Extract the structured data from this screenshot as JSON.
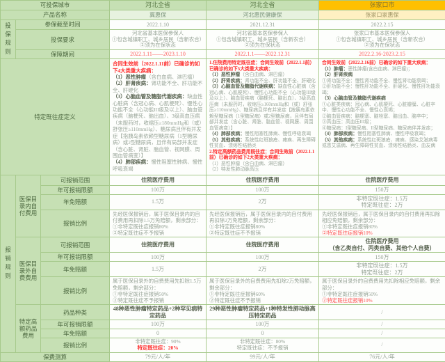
{
  "colors": {
    "header_green": "#c6e0b4",
    "header_yellow": "#ffc000",
    "accent_red": "#fe2b2b",
    "pink_red": "#ff5252"
  },
  "labels": {
    "region": "可投保城市",
    "product": "产品名称",
    "section_enroll": "投保规则",
    "deadline": "参保截至时间",
    "require": "投保要求",
    "period": "保障期间",
    "preexisting": "特定既往症定义",
    "section_report": "报销规则",
    "group_inlist": "医保目录内自付费用",
    "group_outlist": "医保目录外自费费用",
    "group_drugs": "特定高额药品费用",
    "scope": "可报销范围",
    "limit": "年可报销限额",
    "deductible": "年免赔额",
    "ratio": "报销比例",
    "drug_types": "药品种类",
    "premium": "保费测算"
  },
  "products": [
    {
      "region": "河北全省",
      "name": "冀惠保",
      "deadline": "2022.1.10",
      "requirements": [
        [
          {
            "t": "河北省基本医保参保人"
          }
        ],
        [
          {
            "t": "①包含城镇职工、城乡居民（含新农合）"
          }
        ],
        [
          {
            "t": "②须为在保状态"
          }
        ]
      ],
      "period": "2022.1.11——2023.1.10",
      "preexisting": [
        [
          {
            "t": "合同生效前（2022.1.11前）已确诊的如下4大类重大疾病：",
            "s": "r"
          }
        ],
        [
          {
            "t": "（1）恶性肿瘤",
            "s": "b"
          },
          {
            "t": "（含白血病、淋巴瘤）"
          }
        ],
        [
          {
            "t": "（2）肝肾疾病：",
            "s": "b"
          },
          {
            "t": "肾功能不全、肝功能不全、肝硬化"
          }
        ],
        [
          {
            "t": "（3）心脑血管及糖脂代谢疾病：",
            "s": "b"
          },
          {
            "t": "缺血性心脏病（含冠心病、心肌梗死）、慢性心功能不全（心功能III级及以上）、脑血管疾病（脑梗死、脑出血）、3级高血压病（未服药时，收缩压≥180mmHg和（或）舒张压≥110mmHg）、糖尿病且伴有并发症【指胰岛素依赖型糖尿病（1型糖尿病）或2型糖尿病，且伴有局部并发症（含心脏、肾脏、脑血管、视网膜、周围血管病变）】"
          }
        ],
        [
          {
            "t": "（4）肺部疾病：",
            "s": "b"
          },
          {
            "t": "慢性阻塞性肺病、慢性呼吸衰竭"
          }
        ]
      ],
      "inlist": {
        "scope": "住院医疗费用",
        "limit": "100万",
        "deductible": [
          [
            {
              "t": "1.5万"
            }
          ]
        ],
        "ratio": [
          [
            {
              "t": "先经医保报销后，属于医保目录内的自付费用再扣除1.5万免赔额，剩余部分："
            }
          ],
          [
            {
              "t": "①非特定既往症报销80%"
            }
          ],
          [
            {
              "t": "②特定既往症不予报销"
            }
          ]
        ]
      },
      "outlist": {
        "scope": [
          [
            {
              "t": "住院医疗费用"
            }
          ]
        ],
        "limit": "100万",
        "deductible": [
          [
            {
              "t": "1.5万"
            }
          ]
        ],
        "ratio": [
          [
            {
              "t": "属于医保目录外的自费费用先扣除1.5万免赔额，剩余部分："
            }
          ],
          [
            {
              "t": "①非特定既往症报销50%"
            }
          ],
          [
            {
              "t": "②特定既往症不予报销"
            }
          ]
        ]
      },
      "drugs": {
        "types": "48种恶性肿瘤特定药品+2种罕见病特定药品",
        "limit": "100万",
        "deductible": "0",
        "ratio": [
          [
            {
              "t": "非特定既往症：90%"
            }
          ],
          [
            {
              "t": "特定既往症：20%",
              "s": "r"
            }
          ]
        ]
      },
      "premium": "79元/人/年"
    },
    {
      "region": "河北全省",
      "name": "河北惠民健康保",
      "deadline": "2021.12.31",
      "requirements": [
        [
          {
            "t": "河北省基本医保参保人"
          }
        ],
        [
          {
            "t": "①包含城镇职工、城乡居民（含新农合）"
          }
        ],
        [
          {
            "t": "②须为在保状态"
          }
        ]
      ],
      "period": "2022.1.1——2022.12.31",
      "preexisting": [
        [
          {
            "t": "1.住院费用特定既往症：合同生效前（2022.1.1前）已确诊的如下5大类重大疾病：",
            "s": "r"
          }
        ],
        [
          {
            "t": "（1）恶性肿瘤",
            "s": "b"
          },
          {
            "t": "（含白血病、淋巴瘤）"
          }
        ],
        [
          {
            "t": "（2）肝肾疾病：",
            "s": "b"
          },
          {
            "t": "肾功能不全、肝功能不全、肝硬化"
          }
        ],
        [
          {
            "t": "（3）心脑血管及糖脂代谢疾病：",
            "s": "b"
          },
          {
            "t": "缺血性心脏病（含冠心病、心肌梗死）、慢性心功能不全（心功能III级及以上）、脑血管疾病（脑梗死、脑出血）、3级高血压病（未服药时，收缩压≥160mmHg和（或）舒张压≥110mmHg）、糖尿病且伴有并发症【按胰岛素依赖型糖尿病（1型糖尿病）或2型糖尿病，且伴有局部并发症（含心脏、肾脏、脑血管、视网膜、周围血管病变）】"
          }
        ],
        [
          {
            "t": "（4）肺部疾病：",
            "s": "b"
          },
          {
            "t": "慢性阻塞性肺病、慢性呼吸衰竭"
          }
        ],
        [
          {
            "t": "（5）其他疾病：",
            "s": "b"
          },
          {
            "t": "系统性红斑狼疮、瘫痪、再生障碍性贫血、溃疡性结肠炎"
          }
        ],
        [
          {
            "t": "2.特定高额药品费用既往症：合同生效前（2022.1.1前）已确诊的如下2大类重大疾病：",
            "s": "r"
          }
        ],
        [
          {
            "t": "（1）恶性肿瘤（含白血病、淋巴瘤）"
          }
        ],
        [
          {
            "t": "（2）特发性肺动脉高压"
          }
        ]
      ],
      "inlist": {
        "scope": "住院医疗费用",
        "limit": "100万",
        "deductible": [
          [
            {
              "t": "2万"
            }
          ]
        ],
        "ratio": [
          [
            {
              "t": "先经医保报销后，属于医保目录内的自付费用再扣除2万免赔额，剩余部分："
            }
          ],
          [
            {
              "t": "①非特定既往症报销80%"
            }
          ],
          [
            {
              "t": "②特定既往症不予报销"
            }
          ]
        ]
      },
      "outlist": {
        "scope": [
          [
            {
              "t": "住院医疗费用"
            }
          ]
        ],
        "limit": "100万",
        "deductible": [
          [
            {
              "t": "2万"
            }
          ]
        ],
        "ratio": [
          [
            {
              "t": "属于医保目录外的自费费用先扣除2万免赔额，剩余部分："
            }
          ],
          [
            {
              "t": "①非特定既往症报销60%"
            }
          ],
          [
            {
              "t": "②特定既往症不予报销"
            }
          ]
        ]
      },
      "drugs": {
        "types": "29种恶性肿瘤特定药品+1种特发性肺动脉高压特定药品",
        "limit": "100万",
        "deductible": "0",
        "ratio": [
          [
            {
              "t": "非特定既往症：80%"
            }
          ],
          [
            {
              "t": "特定既往症：不予报销"
            }
          ]
        ]
      },
      "premium": "99元/人/年"
    },
    {
      "region": "张家口市",
      "name": "张家口家惠保",
      "deadline": "2022.2.15",
      "requirements": [
        [
          {
            "t": "张家口市基本医保参保人"
          }
        ],
        [
          {
            "t": "①包含城镇职工、城乡居民（含新农合）"
          }
        ],
        [
          {
            "t": "②须为在保状态"
          }
        ]
      ],
      "period": "2022.2.16-2023.2.15",
      "preexisting": [
        [
          {
            "t": "合同生效前（2022.2.16前）已确诊的如下重大疾病：",
            "s": "r"
          }
        ],
        [
          {
            "t": "（1）肿瘤：",
            "s": "b"
          },
          {
            "t": "恶性肿瘤(含白血病、淋巴瘤)；"
          }
        ],
        [
          {
            "t": "（2）肝肾疾病",
            "s": "b"
          }
        ],
        [
          {
            "t": "①肾功能不全：慢性肾功能不全、慢性肾功能衰竭；"
          }
        ],
        [
          {
            "t": "②肝功能不全：慢性肝功能不全、肝硬化、慢性肝功能衰竭；"
          }
        ],
        [
          {
            "t": "（3）心脑血管及糖脂代谢疾病",
            "s": "b"
          }
        ],
        [
          {
            "t": "①心脏类疾病：冠心病、心肌梗死、心脏瓣膜、心脏卒中、慢性心功能不全、慢性心衰竭；"
          }
        ],
        [
          {
            "t": "②脑血管疾病：脑梗塞、脑栓塞、脑出血、脑卒中；"
          }
        ],
        [
          {
            "t": "③高血压：高血压III级；"
          }
        ],
        [
          {
            "t": "④糖尿病：I型糖尿病、II型糖尿病、糖尿病伴并发症；"
          }
        ],
        [
          {
            "t": "（4）肺部疾病：",
            "s": "b"
          },
          {
            "t": "慢性阻塞性肺病、慢性呼吸衰竭；"
          }
        ],
        [
          {
            "t": "（5）其他疾病：",
            "s": "b"
          },
          {
            "t": "系统性红斑狼疮、瘫痪、感染艾滋病毒或患艾滋病、再生障碍性贫血、溃疡性结肠炎、血友病"
          }
        ]
      ],
      "inlist": {
        "scope": "住院医疗费用",
        "limit": "150万",
        "deductible": [
          [
            {
              "t": "非特定既往症：1.5万"
            }
          ],
          [
            {
              "t": "特定既往症：2万"
            }
          ]
        ],
        "ratio": [
          [
            {
              "t": "先经医保报销后，属于医保目录内的自付费用再扣除相应免赔额，剩余部分："
            }
          ],
          [
            {
              "t": "①非特定既往症报销80%"
            }
          ],
          [
            {
              "t": "②特定既往症报销10%",
              "s": "p"
            }
          ]
        ]
      },
      "outlist": {
        "scope": [
          [
            {
              "t": "住院医疗费用",
              "s": "b"
            }
          ],
          [
            {
              "t": "（含乙类自付、丙类自费、其他个人自费）",
              "s": "b"
            }
          ]
        ],
        "limit": "150万",
        "deductible": [
          [
            {
              "t": "非特定既往症：1.5万"
            }
          ],
          [
            {
              "t": "特定既往症：2万"
            }
          ]
        ],
        "ratio": [
          [
            {
              "t": "属于医保目录外的自费费用先扣除相应免赔额，剩余部分："
            }
          ],
          [
            {
              "t": "①非特定既往症报销50%"
            }
          ],
          [
            {
              "t": "②特定既往症报销10%",
              "s": "p"
            }
          ]
        ]
      },
      "drugs": {
        "types": "/",
        "limit": "/",
        "deductible": "/",
        "ratio": [
          [
            {
              "t": "/"
            }
          ]
        ]
      },
      "premium": "76元/人/年"
    }
  ]
}
